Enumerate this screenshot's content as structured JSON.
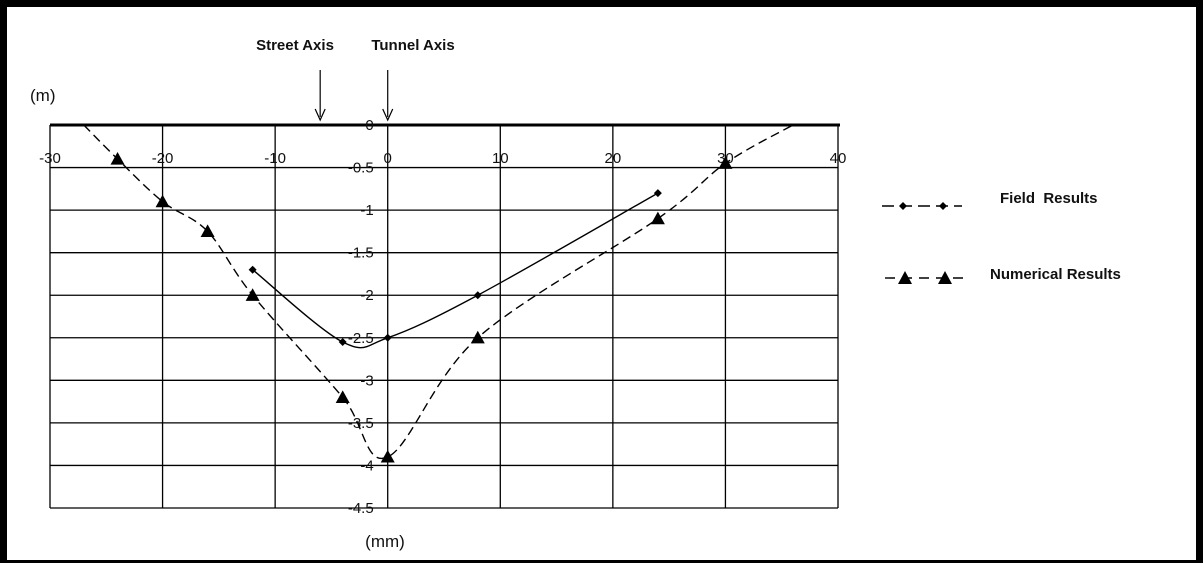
{
  "chart_data": {
    "type": "line",
    "x_axis_label": "(mm)",
    "y_axis_label": "(m)",
    "xlim": [
      -30,
      40
    ],
    "ylim": [
      -4.5,
      0
    ],
    "x_ticks": [
      "-30",
      "-20",
      "-10",
      "0",
      "10",
      "20",
      "30",
      "40"
    ],
    "y_ticks": [
      "0",
      "-0.5",
      "-1",
      "-1.5",
      "-2",
      "-2.5",
      "-3",
      "-3.5",
      "-4",
      "-4.5"
    ],
    "grid": true,
    "annotations": [
      {
        "text": "Street Axis",
        "x": -6
      },
      {
        "text": "Tunnel Axis",
        "x": 0
      }
    ],
    "legend_position": "right",
    "series": [
      {
        "name": "Field  Results",
        "marker": "diamond",
        "line": "solid",
        "x": [
          -12,
          -4,
          0,
          8,
          24
        ],
        "y": [
          -1.7,
          -2.55,
          -2.5,
          -2.0,
          -0.8
        ]
      },
      {
        "name": "Numerical Results",
        "marker": "triangle",
        "line": "dashed",
        "x": [
          -24,
          -20,
          -16,
          -12,
          -4,
          0,
          8,
          24,
          30
        ],
        "y": [
          -0.4,
          -0.9,
          -1.25,
          -2.0,
          -3.2,
          -3.9,
          -2.5,
          -1.1,
          -0.45
        ]
      }
    ]
  }
}
